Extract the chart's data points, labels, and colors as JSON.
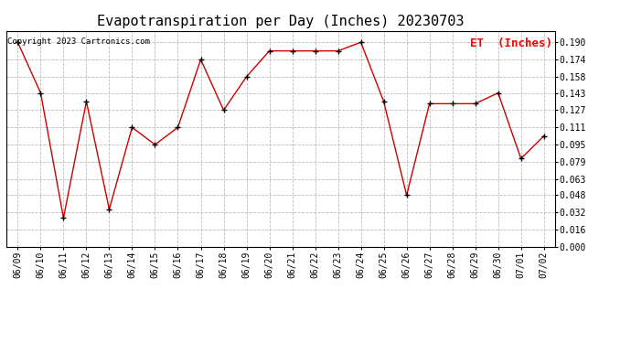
{
  "title": "Evapotranspiration per Day (Inches) 20230703",
  "copyright": "Copyright 2023 Cartronics.com",
  "legend_label": "ET  (Inches)",
  "dates": [
    "06/09",
    "06/10",
    "06/11",
    "06/12",
    "06/13",
    "06/14",
    "06/15",
    "06/16",
    "06/17",
    "06/18",
    "06/19",
    "06/20",
    "06/21",
    "06/22",
    "06/23",
    "06/24",
    "06/25",
    "06/26",
    "06/27",
    "06/28",
    "06/29",
    "06/30",
    "07/01",
    "07/02"
  ],
  "values": [
    0.19,
    0.143,
    0.027,
    0.135,
    0.035,
    0.111,
    0.095,
    0.111,
    0.174,
    0.127,
    0.158,
    0.182,
    0.182,
    0.182,
    0.182,
    0.19,
    0.135,
    0.048,
    0.133,
    0.133,
    0.133,
    0.143,
    0.082,
    0.103
  ],
  "line_color": "#cc0000",
  "marker_color": "#000000",
  "grid_color": "#bbbbbb",
  "background_color": "#ffffff",
  "ylim": [
    0.0,
    0.2006
  ],
  "yticks": [
    0.0,
    0.016,
    0.032,
    0.048,
    0.063,
    0.079,
    0.095,
    0.111,
    0.127,
    0.143,
    0.158,
    0.174,
    0.19
  ],
  "title_fontsize": 11,
  "legend_fontsize": 9,
  "tick_fontsize": 7,
  "copyright_fontsize": 6.5
}
